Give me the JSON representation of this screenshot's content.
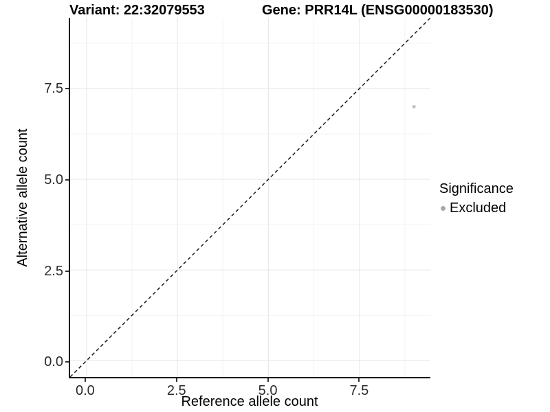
{
  "chart_data": {
    "type": "scatter",
    "title_variant": "Variant: 22:32079553",
    "title_gene": "Gene: PRR14L (ENSG00000183530)",
    "xlabel": "Reference allele count",
    "ylabel": "Alternative allele count",
    "xlim": [
      -0.45,
      9.45
    ],
    "ylim": [
      -0.45,
      9.45
    ],
    "x_ticks": {
      "values": [
        0,
        2.5,
        5,
        7.5
      ],
      "labels": [
        "0.0",
        "2.5",
        "5.0",
        "7.5"
      ]
    },
    "y_ticks": {
      "values": [
        0,
        2.5,
        5,
        7.5
      ],
      "labels": [
        "0.0",
        "2.5",
        "5.0",
        "7.5"
      ]
    },
    "x_minor": [
      1.25,
      3.75,
      6.25,
      8.75
    ],
    "y_minor": [
      1.25,
      3.75,
      6.25,
      8.75
    ],
    "grid": true,
    "series": [
      {
        "name": "Excluded",
        "points": [
          {
            "x": 9,
            "y": 7
          }
        ]
      }
    ],
    "identity_line": {
      "slope": 1,
      "intercept": 0,
      "style": "dashed"
    },
    "legend": {
      "title": "Significance",
      "position": "right",
      "entries": [
        {
          "label": "Excluded",
          "color": "#a8a8a8"
        }
      ]
    },
    "style": {
      "point_color": "#c2c2c2",
      "point_radius": 2.5,
      "grid_major": "#e6e6e6",
      "grid_minor": "#f3f3f3",
      "axis_color": "#1a1a1a",
      "background": "#ffffff"
    }
  }
}
